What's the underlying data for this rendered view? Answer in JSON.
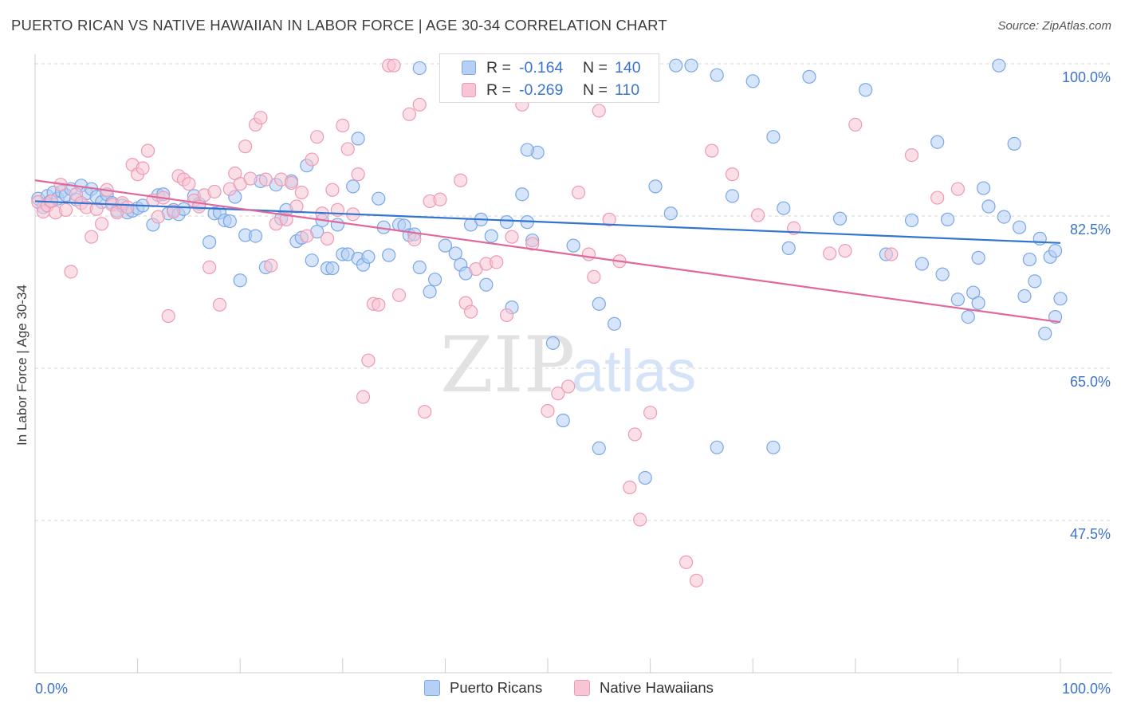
{
  "title": "PUERTO RICAN VS NATIVE HAWAIIAN IN LABOR FORCE | AGE 30-34 CORRELATION CHART",
  "source": "Source: ZipAtlas.com",
  "watermark": {
    "zip": "ZIP",
    "atlas": "atlas"
  },
  "legend_stats": {
    "r_label": "R =",
    "n_label": "N =",
    "blue": {
      "r": "-0.164",
      "n": "140"
    },
    "pink": {
      "r": "-0.269",
      "n": "110"
    }
  },
  "colors": {
    "blue": "#7ba7e6",
    "blue_fill": "#b5d0f4",
    "blue_line": "#3374d0",
    "pink": "#ee9ab5",
    "pink_fill": "#f7c5d4",
    "pink_line": "#e0699b",
    "tick_label": "#3b73cc"
  },
  "chart_data": {
    "type": "scatter",
    "title": "PUERTO RICAN VS NATIVE HAWAIIAN IN LABOR FORCE | AGE 30-34 CORRELATION CHART",
    "xlabel": "",
    "ylabel": "In Labor Force | Age 30-34",
    "xlim": [
      0,
      100
    ],
    "ylim": [
      30,
      100
    ],
    "x_tick_labels": [
      "0.0%",
      "100.0%"
    ],
    "y_ticks": [
      47.5,
      65.0,
      82.5,
      100.0
    ],
    "y_tick_labels": [
      "47.5%",
      "65.0%",
      "82.5%",
      "100.0%"
    ],
    "grid": "horizontal dashed",
    "legend_position": "bottom",
    "series": [
      {
        "name": "Puerto Ricans",
        "r": -0.164,
        "n": 140,
        "trend": [
          [
            0,
            84.2
          ],
          [
            100,
            79.4
          ]
        ],
        "points": [
          [
            0.3,
            84.5
          ],
          [
            0.8,
            83.5
          ],
          [
            1.2,
            84.8
          ],
          [
            1.5,
            84.2
          ],
          [
            1.8,
            85.2
          ],
          [
            2.2,
            84.5
          ],
          [
            2.6,
            85.3
          ],
          [
            3.0,
            84.9
          ],
          [
            3.5,
            85.6
          ],
          [
            4.0,
            84.4
          ],
          [
            4.5,
            86.0
          ],
          [
            5.0,
            85.1
          ],
          [
            5.5,
            85.6
          ],
          [
            6.0,
            84.7
          ],
          [
            6.5,
            84.1
          ],
          [
            7.0,
            85.0
          ],
          [
            7.5,
            84.0
          ],
          [
            8.0,
            83.1
          ],
          [
            8.5,
            83.7
          ],
          [
            9.0,
            82.9
          ],
          [
            9.5,
            83.1
          ],
          [
            10.0,
            83.4
          ],
          [
            10.5,
            83.7
          ],
          [
            11.5,
            81.5
          ],
          [
            12.0,
            84.9
          ],
          [
            12.5,
            85.0
          ],
          [
            13.0,
            82.8
          ],
          [
            13.5,
            83.2
          ],
          [
            14.0,
            82.7
          ],
          [
            14.5,
            83.3
          ],
          [
            15.5,
            84.8
          ],
          [
            16.0,
            83.9
          ],
          [
            17.0,
            79.5
          ],
          [
            17.5,
            82.8
          ],
          [
            18.0,
            82.9
          ],
          [
            18.5,
            82.0
          ],
          [
            19.0,
            81.9
          ],
          [
            19.5,
            84.7
          ],
          [
            20.0,
            75.1
          ],
          [
            20.5,
            80.3
          ],
          [
            21.5,
            80.2
          ],
          [
            22.0,
            86.5
          ],
          [
            22.5,
            76.6
          ],
          [
            23.5,
            86.1
          ],
          [
            24.0,
            82.2
          ],
          [
            24.5,
            83.2
          ],
          [
            25.0,
            86.5
          ],
          [
            25.5,
            79.6
          ],
          [
            26.0,
            80.0
          ],
          [
            26.5,
            88.3
          ],
          [
            27.0,
            77.4
          ],
          [
            27.5,
            80.7
          ],
          [
            28.0,
            82.0
          ],
          [
            28.5,
            76.5
          ],
          [
            29.0,
            76.5
          ],
          [
            29.5,
            81.5
          ],
          [
            30.0,
            78.1
          ],
          [
            30.5,
            78.1
          ],
          [
            31.0,
            85.9
          ],
          [
            31.5,
            91.4
          ],
          [
            31.5,
            77.6
          ],
          [
            32.0,
            76.9
          ],
          [
            32.5,
            77.8
          ],
          [
            33.5,
            84.5
          ],
          [
            34.0,
            81.2
          ],
          [
            34.5,
            78.0
          ],
          [
            35.5,
            81.5
          ],
          [
            36.0,
            81.4
          ],
          [
            36.5,
            80.3
          ],
          [
            37.0,
            80.4
          ],
          [
            37.5,
            76.6
          ],
          [
            37.5,
            99.5
          ],
          [
            38.5,
            73.8
          ],
          [
            39.0,
            75.2
          ],
          [
            40.0,
            79.1
          ],
          [
            41.0,
            78.2
          ],
          [
            41.5,
            76.9
          ],
          [
            42.0,
            75.9
          ],
          [
            42.5,
            81.5
          ],
          [
            43.5,
            82.1
          ],
          [
            44.0,
            74.6
          ],
          [
            44.5,
            80.2
          ],
          [
            46.0,
            81.8
          ],
          [
            46.5,
            72.0
          ],
          [
            47.5,
            85.0
          ],
          [
            48.0,
            81.8
          ],
          [
            48.5,
            79.7
          ],
          [
            50.5,
            67.9
          ],
          [
            51.5,
            59.0
          ],
          [
            52.5,
            79.1
          ],
          [
            53.5,
            98.6
          ],
          [
            55.0,
            72.4
          ],
          [
            56.5,
            70.1
          ],
          [
            60.5,
            85.9
          ],
          [
            62.0,
            82.8
          ],
          [
            62.5,
            99.8
          ],
          [
            64.0,
            99.8
          ],
          [
            66.5,
            98.7
          ],
          [
            68.0,
            84.8
          ],
          [
            70.0,
            98.0
          ],
          [
            72.0,
            91.6
          ],
          [
            73.0,
            83.4
          ],
          [
            73.5,
            78.8
          ],
          [
            75.5,
            98.5
          ],
          [
            78.5,
            82.2
          ],
          [
            81.0,
            97.0
          ],
          [
            83.0,
            78.1
          ],
          [
            85.5,
            82.0
          ],
          [
            86.5,
            77.0
          ],
          [
            88.0,
            91.0
          ],
          [
            88.5,
            75.8
          ],
          [
            89.0,
            82.1
          ],
          [
            91.0,
            70.9
          ],
          [
            91.5,
            73.7
          ],
          [
            92.0,
            72.5
          ],
          [
            92.5,
            85.7
          ],
          [
            93.0,
            83.6
          ],
          [
            94.0,
            99.8
          ],
          [
            95.5,
            90.8
          ],
          [
            96.0,
            81.2
          ],
          [
            97.0,
            77.5
          ],
          [
            98.0,
            79.9
          ],
          [
            99.0,
            77.8
          ],
          [
            99.5,
            70.9
          ],
          [
            100.0,
            73.0
          ],
          [
            98.5,
            69.0
          ],
          [
            97.5,
            75.0
          ],
          [
            99.5,
            78.5
          ],
          [
            96.5,
            73.3
          ],
          [
            94.5,
            82.4
          ],
          [
            92.0,
            77.7
          ],
          [
            90.0,
            72.9
          ],
          [
            72.0,
            55.9
          ],
          [
            66.5,
            55.9
          ],
          [
            55.0,
            55.8
          ],
          [
            59.5,
            52.4
          ],
          [
            49.0,
            89.8
          ],
          [
            48.0,
            90.1
          ]
        ]
      },
      {
        "name": "Native Hawaiians",
        "r": -0.269,
        "n": 110,
        "trend": [
          [
            0,
            86.6
          ],
          [
            100,
            70.3
          ]
        ],
        "points": [
          [
            0.3,
            84.1
          ],
          [
            0.8,
            83.0
          ],
          [
            1.2,
            83.7
          ],
          [
            1.6,
            84.2
          ],
          [
            2.0,
            82.9
          ],
          [
            2.5,
            86.1
          ],
          [
            3.0,
            83.2
          ],
          [
            3.5,
            76.1
          ],
          [
            4.0,
            85.0
          ],
          [
            4.5,
            84.0
          ],
          [
            5.0,
            83.5
          ],
          [
            5.5,
            80.1
          ],
          [
            6.0,
            83.3
          ],
          [
            6.5,
            81.6
          ],
          [
            7.0,
            85.5
          ],
          [
            7.5,
            83.8
          ],
          [
            8.0,
            82.9
          ],
          [
            8.5,
            84.0
          ],
          [
            9.0,
            83.5
          ],
          [
            9.5,
            88.4
          ],
          [
            10.0,
            87.3
          ],
          [
            10.5,
            88.0
          ],
          [
            11.0,
            90.0
          ],
          [
            11.5,
            84.3
          ],
          [
            12.0,
            82.4
          ],
          [
            12.5,
            84.6
          ],
          [
            13.0,
            71.0
          ],
          [
            13.5,
            83.0
          ],
          [
            14.0,
            87.1
          ],
          [
            14.5,
            86.7
          ],
          [
            15.0,
            86.2
          ],
          [
            15.5,
            84.3
          ],
          [
            16.0,
            83.6
          ],
          [
            16.5,
            84.9
          ],
          [
            17.0,
            76.6
          ],
          [
            17.5,
            85.3
          ],
          [
            18.0,
            72.3
          ],
          [
            19.0,
            85.6
          ],
          [
            19.5,
            87.4
          ],
          [
            20.0,
            86.2
          ],
          [
            20.5,
            90.5
          ],
          [
            21.0,
            86.8
          ],
          [
            21.5,
            93.0
          ],
          [
            22.0,
            93.8
          ],
          [
            22.5,
            86.7
          ],
          [
            23.0,
            76.8
          ],
          [
            23.5,
            81.6
          ],
          [
            24.0,
            86.7
          ],
          [
            24.5,
            82.1
          ],
          [
            25.0,
            86.3
          ],
          [
            25.5,
            83.6
          ],
          [
            26.0,
            85.2
          ],
          [
            26.5,
            80.2
          ],
          [
            27.0,
            89.0
          ],
          [
            27.5,
            91.6
          ],
          [
            28.0,
            82.8
          ],
          [
            28.5,
            79.9
          ],
          [
            29.0,
            85.5
          ],
          [
            29.5,
            83.2
          ],
          [
            30.0,
            92.9
          ],
          [
            30.5,
            90.2
          ],
          [
            31.0,
            82.7
          ],
          [
            31.5,
            87.3
          ],
          [
            32.0,
            61.7
          ],
          [
            32.5,
            65.9
          ],
          [
            33.0,
            72.4
          ],
          [
            33.5,
            72.3
          ],
          [
            34.5,
            99.8
          ],
          [
            35.0,
            99.8
          ],
          [
            35.5,
            73.4
          ],
          [
            36.5,
            94.2
          ],
          [
            37.0,
            79.8
          ],
          [
            37.5,
            95.3
          ],
          [
            38.0,
            60.0
          ],
          [
            38.5,
            84.2
          ],
          [
            39.5,
            84.4
          ],
          [
            41.5,
            86.6
          ],
          [
            42.0,
            72.5
          ],
          [
            42.5,
            71.5
          ],
          [
            43.0,
            76.4
          ],
          [
            43.5,
            96.3
          ],
          [
            44.0,
            77.0
          ],
          [
            45.0,
            77.2
          ],
          [
            46.0,
            71.1
          ],
          [
            46.5,
            80.1
          ],
          [
            47.5,
            95.3
          ],
          [
            48.5,
            79.3
          ],
          [
            50.0,
            60.1
          ],
          [
            51.0,
            62.1
          ],
          [
            52.0,
            62.9
          ],
          [
            53.0,
            85.2
          ],
          [
            54.0,
            78.1
          ],
          [
            54.5,
            75.5
          ],
          [
            55.0,
            94.6
          ],
          [
            56.0,
            82.1
          ],
          [
            57.0,
            77.3
          ],
          [
            58.0,
            51.3
          ],
          [
            58.5,
            57.4
          ],
          [
            59.0,
            47.6
          ],
          [
            60.0,
            59.9
          ],
          [
            63.5,
            42.7
          ],
          [
            64.5,
            40.6
          ],
          [
            66.0,
            90.0
          ],
          [
            68.0,
            87.3
          ],
          [
            70.5,
            82.6
          ],
          [
            74.0,
            81.1
          ],
          [
            77.5,
            78.2
          ],
          [
            79.0,
            78.5
          ],
          [
            80.0,
            93.0
          ],
          [
            83.5,
            78.1
          ],
          [
            85.5,
            89.5
          ],
          [
            88.0,
            84.6
          ],
          [
            90.0,
            85.6
          ]
        ]
      }
    ]
  },
  "bottom_legend": {
    "blue": "Puerto Ricans",
    "pink": "Native Hawaiians"
  }
}
